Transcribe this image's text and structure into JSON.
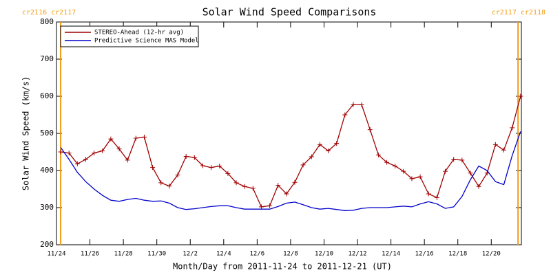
{
  "chart_data": {
    "type": "line",
    "title": "Solar Wind Speed Comparisons",
    "x_label": "Month/Day from 2011-11-24 to 2011-12-21 (UT)",
    "y_label": "Solar Wind Speed (km/s)",
    "xlim": [
      0,
      27.8
    ],
    "ylim": [
      200,
      800
    ],
    "yticks": [
      200,
      300,
      400,
      500,
      600,
      700,
      800
    ],
    "xticks": [
      {
        "value": 0,
        "label": "11/24"
      },
      {
        "value": 2,
        "label": "11/26"
      },
      {
        "value": 4,
        "label": "11/28"
      },
      {
        "value": 6,
        "label": "11/30"
      },
      {
        "value": 8,
        "label": "12/2"
      },
      {
        "value": 10,
        "label": "12/4"
      },
      {
        "value": 12,
        "label": "12/6"
      },
      {
        "value": 14,
        "label": "12/8"
      },
      {
        "value": 16,
        "label": "12/10"
      },
      {
        "value": 18,
        "label": "12/12"
      },
      {
        "value": 20,
        "label": "12/14"
      },
      {
        "value": 22,
        "label": "12/16"
      },
      {
        "value": 24,
        "label": "12/18"
      },
      {
        "value": 26,
        "label": "12/20"
      }
    ],
    "annotations": [
      {
        "text": "cr2116 cr2117",
        "x": 0.25,
        "color": "#f39c12"
      },
      {
        "text": "cr2117 cr2118",
        "x": 27.6,
        "color": "#f39c12"
      }
    ],
    "x": [
      0.25,
      0.75,
      1.25,
      1.75,
      2.25,
      2.75,
      3.25,
      3.75,
      4.25,
      4.75,
      5.25,
      5.75,
      6.25,
      6.75,
      7.25,
      7.75,
      8.25,
      8.75,
      9.25,
      9.75,
      10.25,
      10.75,
      11.25,
      11.75,
      12.25,
      12.75,
      13.25,
      13.75,
      14.25,
      14.75,
      15.25,
      15.75,
      16.25,
      16.75,
      17.25,
      17.75,
      18.25,
      18.75,
      19.25,
      19.75,
      20.25,
      20.75,
      21.25,
      21.75,
      22.25,
      22.75,
      23.25,
      23.75,
      24.25,
      24.75,
      25.25,
      25.75,
      26.25,
      26.75,
      27.25,
      27.75
    ],
    "series": [
      {
        "name": "STEREO-Ahead (12-hr avg)",
        "color": "#a00000",
        "marker": "+",
        "values": [
          450,
          447,
          418,
          430,
          447,
          453,
          485,
          458,
          428,
          487,
          490,
          408,
          367,
          358,
          388,
          438,
          435,
          413,
          408,
          412,
          392,
          367,
          357,
          352,
          302,
          305,
          360,
          337,
          368,
          415,
          437,
          470,
          453,
          473,
          550,
          578,
          577,
          510,
          442,
          422,
          412,
          398,
          378,
          383,
          337,
          327,
          398,
          430,
          428,
          393,
          357,
          393,
          470,
          455,
          515,
          600
        ]
      },
      {
        "name": "Predictive Science MAS Model",
        "color": "#0000cc",
        "values": [
          462,
          430,
          395,
          370,
          350,
          333,
          320,
          317,
          322,
          325,
          320,
          317,
          318,
          312,
          300,
          295,
          297,
          300,
          303,
          305,
          305,
          300,
          296,
          296,
          296,
          296,
          303,
          312,
          315,
          308,
          300,
          296,
          298,
          295,
          292,
          293,
          298,
          300,
          300,
          300,
          302,
          304,
          302,
          310,
          316,
          310,
          298,
          302,
          330,
          375,
          412,
          400,
          370,
          362,
          440,
          505
        ]
      }
    ]
  }
}
